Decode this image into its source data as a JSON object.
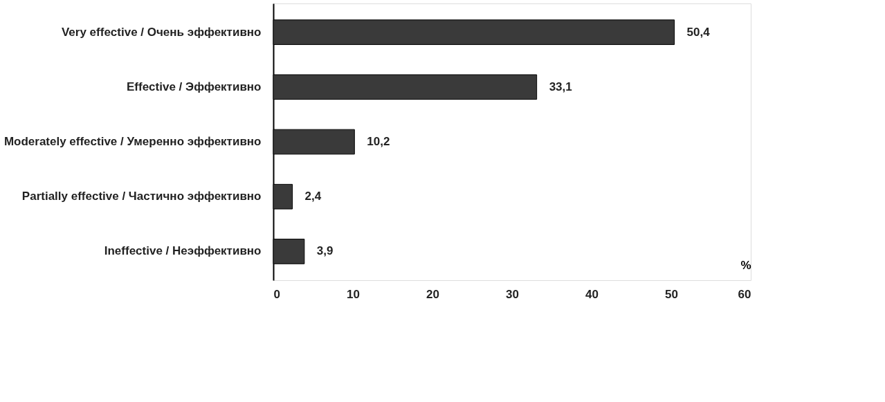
{
  "chart_data": {
    "type": "bar",
    "orientation": "horizontal",
    "categories": [
      "Very effective / Очень эффективно",
      "Effective / Эффективно",
      "Moderately effective / Умеренно эффективно",
      "Partially effective / Частично эффективно",
      "Ineffective / Неэффективно"
    ],
    "values": [
      50.4,
      33.1,
      10.2,
      2.4,
      3.9
    ],
    "value_labels": [
      "50,4",
      "33,1",
      "10,2",
      "2,4",
      "3,9"
    ],
    "color": "#3a3a3a",
    "xlabel": "%",
    "xlim": [
      0,
      60
    ],
    "xticks": [
      0,
      10,
      20,
      30,
      40,
      50,
      60
    ],
    "grid": false
  }
}
